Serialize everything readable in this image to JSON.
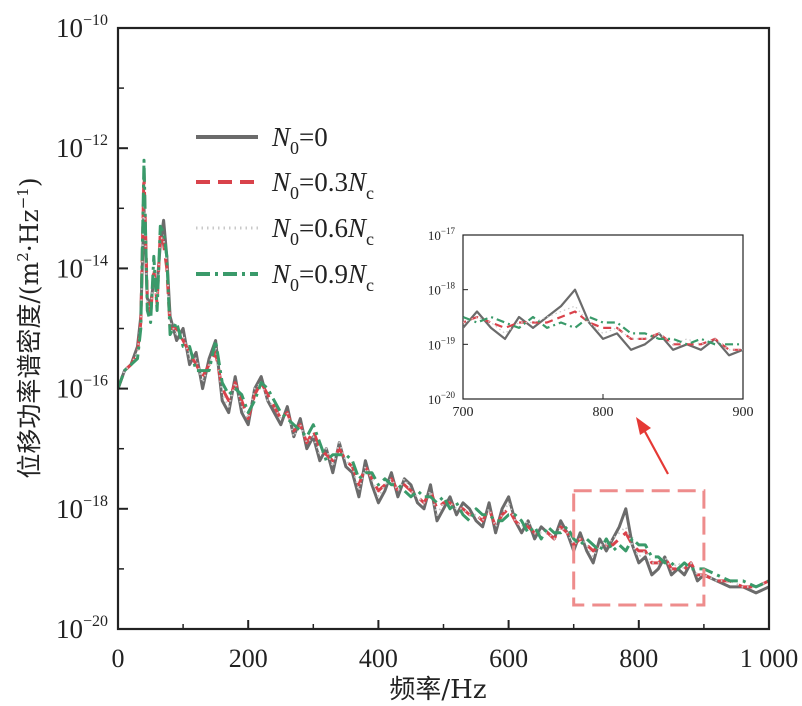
{
  "chart_data": {
    "type": "line",
    "title": "",
    "xlabel": "频率/Hz",
    "ylabel": "位移功率谱密度/(m²·Hz⁻¹)",
    "ylabel_parts": [
      "位移功率谱密度/(m",
      "2",
      "·Hz",
      "−1",
      ")"
    ],
    "xlim": [
      0,
      1000
    ],
    "ylim_log10": [
      -20,
      -10
    ],
    "y_scale": "log",
    "x_ticks": [
      0,
      200,
      400,
      600,
      800,
      1000
    ],
    "x_tick_labels": [
      "0",
      "200",
      "400",
      "600",
      "800",
      "1 000"
    ],
    "y_ticks_exp": [
      -20,
      -18,
      -16,
      -14,
      -12,
      -10
    ],
    "y_tick_base": "10",
    "y_tick_exponents": [
      "−20",
      "−18",
      "−16",
      "−14",
      "−12",
      "−10"
    ],
    "legend_position": "upper-left",
    "series": [
      {
        "name": "N0=0",
        "legend": {
          "sym": "N",
          "sub": "0",
          "eq": "=0",
          "coef": "",
          "sym2": "",
          "sub2": ""
        },
        "color": "#6b6b6b",
        "dash": "solid",
        "x": [
          0,
          10,
          20,
          30,
          35,
          40,
          45,
          50,
          55,
          60,
          65,
          70,
          75,
          80,
          90,
          100,
          110,
          120,
          130,
          140,
          150,
          160,
          170,
          180,
          190,
          200,
          210,
          220,
          230,
          240,
          250,
          260,
          270,
          280,
          290,
          300,
          310,
          320,
          330,
          340,
          350,
          360,
          370,
          380,
          390,
          400,
          410,
          420,
          430,
          440,
          450,
          460,
          470,
          480,
          490,
          500,
          510,
          520,
          530,
          540,
          550,
          560,
          570,
          580,
          590,
          600,
          610,
          620,
          630,
          640,
          650,
          660,
          670,
          680,
          690,
          700,
          710,
          720,
          730,
          740,
          750,
          760,
          770,
          780,
          790,
          800,
          810,
          820,
          830,
          840,
          850,
          860,
          870,
          880,
          890,
          900,
          920,
          940,
          960,
          980,
          1000
        ],
        "log_y": [
          -16.0,
          -15.7,
          -15.6,
          -15.3,
          -14.8,
          -13.0,
          -14.5,
          -14.6,
          -14.2,
          -14.3,
          -13.6,
          -13.2,
          -13.8,
          -14.8,
          -15.2,
          -15.0,
          -15.6,
          -15.4,
          -16.0,
          -15.5,
          -15.2,
          -16.2,
          -16.4,
          -15.8,
          -16.4,
          -16.6,
          -16.0,
          -15.8,
          -16.2,
          -16.4,
          -16.6,
          -16.3,
          -16.8,
          -16.5,
          -17.0,
          -16.8,
          -17.2,
          -17.0,
          -17.4,
          -16.9,
          -17.3,
          -17.4,
          -17.8,
          -17.2,
          -17.6,
          -17.9,
          -17.7,
          -17.4,
          -17.8,
          -17.5,
          -17.6,
          -17.9,
          -18.0,
          -17.6,
          -18.2,
          -18.0,
          -17.8,
          -18.1,
          -17.9,
          -18.0,
          -18.2,
          -18.3,
          -17.9,
          -18.4,
          -18.0,
          -17.8,
          -18.2,
          -18.4,
          -18.2,
          -18.5,
          -18.3,
          -18.4,
          -18.5,
          -18.2,
          -18.4,
          -18.7,
          -18.4,
          -18.7,
          -18.9,
          -18.5,
          -18.7,
          -18.5,
          -18.3,
          -18.0,
          -18.6,
          -18.9,
          -18.8,
          -19.1,
          -19.0,
          -18.8,
          -19.1,
          -19.0,
          -19.1,
          -18.9,
          -19.2,
          -19.1,
          -19.2,
          -19.3,
          -19.3,
          -19.4,
          -19.3
        ]
      },
      {
        "name": "N0=0.3Nc",
        "legend": {
          "sym": "N",
          "sub": "0",
          "eq": "=0.3",
          "coef": "",
          "sym2": "N",
          "sub2": "c"
        },
        "color": "#d9424b",
        "dash": "dashed",
        "x": [
          0,
          10,
          20,
          30,
          35,
          40,
          45,
          50,
          55,
          60,
          65,
          70,
          75,
          80,
          90,
          100,
          110,
          120,
          130,
          140,
          150,
          160,
          170,
          180,
          190,
          200,
          210,
          220,
          230,
          240,
          250,
          260,
          270,
          280,
          290,
          300,
          310,
          320,
          330,
          340,
          350,
          360,
          370,
          380,
          390,
          400,
          410,
          420,
          430,
          440,
          450,
          460,
          470,
          480,
          490,
          500,
          510,
          520,
          530,
          540,
          550,
          560,
          570,
          580,
          590,
          600,
          610,
          620,
          630,
          640,
          650,
          660,
          670,
          680,
          690,
          700,
          710,
          720,
          730,
          740,
          750,
          760,
          770,
          780,
          790,
          800,
          810,
          820,
          830,
          840,
          850,
          860,
          870,
          880,
          890,
          900,
          920,
          940,
          960,
          980,
          1000
        ],
        "log_y": [
          -16.0,
          -15.7,
          -15.6,
          -15.4,
          -14.9,
          -12.4,
          -14.5,
          -14.8,
          -14.0,
          -14.6,
          -13.4,
          -13.6,
          -14.0,
          -15.0,
          -15.0,
          -15.2,
          -15.4,
          -15.6,
          -15.8,
          -15.6,
          -15.4,
          -16.0,
          -16.2,
          -15.9,
          -16.2,
          -16.5,
          -16.1,
          -15.9,
          -16.1,
          -16.3,
          -16.5,
          -16.4,
          -16.7,
          -16.6,
          -16.9,
          -16.7,
          -17.0,
          -17.1,
          -17.2,
          -17.0,
          -17.2,
          -17.3,
          -17.6,
          -17.3,
          -17.5,
          -17.7,
          -17.6,
          -17.5,
          -17.7,
          -17.6,
          -17.7,
          -17.8,
          -17.9,
          -17.7,
          -18.0,
          -17.9,
          -17.9,
          -18.0,
          -18.0,
          -18.1,
          -18.1,
          -18.2,
          -18.0,
          -18.3,
          -18.1,
          -18.0,
          -18.2,
          -18.3,
          -18.3,
          -18.4,
          -18.4,
          -18.4,
          -18.5,
          -18.3,
          -18.4,
          -18.6,
          -18.5,
          -18.6,
          -18.7,
          -18.6,
          -18.6,
          -18.6,
          -18.5,
          -18.4,
          -18.6,
          -18.7,
          -18.7,
          -18.9,
          -18.9,
          -18.8,
          -19.0,
          -19.0,
          -19.0,
          -18.9,
          -19.1,
          -19.1,
          -19.2,
          -19.2,
          -19.3,
          -19.3,
          -19.2
        ]
      },
      {
        "name": "N0=0.6Nc",
        "legend": {
          "sym": "N",
          "sub": "0",
          "eq": "=0.6",
          "coef": "",
          "sym2": "N",
          "sub2": "c"
        },
        "color": "#c9c9c9",
        "dash": "dotted",
        "x": [
          0,
          10,
          20,
          30,
          35,
          40,
          45,
          50,
          55,
          60,
          65,
          70,
          75,
          80,
          90,
          100,
          110,
          120,
          130,
          140,
          150,
          160,
          170,
          180,
          190,
          200,
          210,
          220,
          230,
          240,
          250,
          260,
          270,
          280,
          290,
          300,
          310,
          320,
          330,
          340,
          350,
          360,
          370,
          380,
          390,
          400,
          410,
          420,
          430,
          440,
          450,
          460,
          470,
          480,
          490,
          500,
          510,
          520,
          530,
          540,
          550,
          560,
          570,
          580,
          590,
          600,
          610,
          620,
          630,
          640,
          650,
          660,
          670,
          680,
          690,
          700,
          710,
          720,
          730,
          740,
          750,
          760,
          770,
          780,
          790,
          800,
          810,
          820,
          830,
          840,
          850,
          860,
          870,
          880,
          890,
          900,
          920,
          940,
          960,
          980,
          1000
        ],
        "log_y": [
          -16.0,
          -15.7,
          -15.6,
          -15.4,
          -14.9,
          -12.8,
          -14.6,
          -14.7,
          -14.1,
          -14.5,
          -13.5,
          -13.5,
          -13.9,
          -14.9,
          -15.1,
          -15.1,
          -15.5,
          -15.5,
          -15.9,
          -15.6,
          -15.3,
          -16.1,
          -16.3,
          -15.9,
          -16.3,
          -16.5,
          -16.0,
          -15.9,
          -16.2,
          -16.3,
          -16.5,
          -16.4,
          -16.8,
          -16.6,
          -16.9,
          -16.8,
          -17.1,
          -17.0,
          -17.3,
          -16.9,
          -17.2,
          -17.3,
          -17.7,
          -17.3,
          -17.5,
          -17.8,
          -17.6,
          -17.5,
          -17.7,
          -17.5,
          -17.7,
          -17.8,
          -17.9,
          -17.7,
          -18.1,
          -17.9,
          -17.9,
          -18.0,
          -18.0,
          -18.1,
          -18.1,
          -18.2,
          -18.0,
          -18.3,
          -18.1,
          -17.9,
          -18.2,
          -18.3,
          -18.2,
          -18.4,
          -18.4,
          -18.4,
          -18.5,
          -18.3,
          -18.4,
          -18.6,
          -18.5,
          -18.6,
          -18.8,
          -18.6,
          -18.6,
          -18.5,
          -18.4,
          -18.3,
          -18.6,
          -18.8,
          -18.7,
          -18.9,
          -18.9,
          -18.8,
          -19.0,
          -18.9,
          -19.0,
          -18.9,
          -19.1,
          -19.1,
          -19.2,
          -19.2,
          -19.3,
          -19.3,
          -19.2
        ]
      },
      {
        "name": "N0=0.9Nc",
        "legend": {
          "sym": "N",
          "sub": "0",
          "eq": "=0.9",
          "coef": "",
          "sym2": "N",
          "sub2": "c"
        },
        "color": "#3a9a6a",
        "dash": "dashdot",
        "x": [
          0,
          10,
          20,
          30,
          35,
          40,
          45,
          50,
          55,
          60,
          65,
          70,
          75,
          80,
          90,
          100,
          110,
          120,
          130,
          140,
          150,
          160,
          170,
          180,
          190,
          200,
          210,
          220,
          230,
          240,
          250,
          260,
          270,
          280,
          290,
          300,
          310,
          320,
          330,
          340,
          350,
          360,
          370,
          380,
          390,
          400,
          410,
          420,
          430,
          440,
          450,
          460,
          470,
          480,
          490,
          500,
          510,
          520,
          530,
          540,
          550,
          560,
          570,
          580,
          590,
          600,
          610,
          620,
          630,
          640,
          650,
          660,
          670,
          680,
          690,
          700,
          710,
          720,
          730,
          740,
          750,
          760,
          770,
          780,
          790,
          800,
          810,
          820,
          830,
          840,
          850,
          860,
          870,
          880,
          890,
          900,
          920,
          940,
          960,
          980,
          1000
        ],
        "log_y": [
          -16.0,
          -15.7,
          -15.6,
          -15.5,
          -15.0,
          -12.2,
          -14.7,
          -14.9,
          -13.8,
          -14.7,
          -13.3,
          -13.4,
          -13.8,
          -15.1,
          -14.9,
          -15.3,
          -15.3,
          -15.7,
          -15.7,
          -15.7,
          -15.2,
          -15.9,
          -16.1,
          -16.0,
          -16.1,
          -16.4,
          -16.2,
          -15.9,
          -16.0,
          -16.2,
          -16.4,
          -16.5,
          -16.6,
          -16.7,
          -16.8,
          -16.6,
          -16.9,
          -17.2,
          -17.1,
          -17.1,
          -17.1,
          -17.2,
          -17.5,
          -17.4,
          -17.4,
          -17.6,
          -17.5,
          -17.6,
          -17.6,
          -17.7,
          -17.8,
          -17.7,
          -17.8,
          -17.8,
          -17.9,
          -17.8,
          -18.0,
          -17.9,
          -18.1,
          -18.2,
          -18.0,
          -18.1,
          -18.1,
          -18.2,
          -18.2,
          -18.1,
          -18.1,
          -18.2,
          -18.4,
          -18.3,
          -18.5,
          -18.3,
          -18.4,
          -18.4,
          -18.3,
          -18.5,
          -18.6,
          -18.5,
          -18.6,
          -18.7,
          -18.5,
          -18.7,
          -18.6,
          -18.7,
          -18.5,
          -18.6,
          -18.6,
          -18.8,
          -18.8,
          -18.9,
          -18.9,
          -19.0,
          -18.9,
          -19.0,
          -19.0,
          -19.0,
          -19.1,
          -19.2,
          -19.2,
          -19.3,
          -19.2
        ]
      }
    ],
    "inset": {
      "xlim": [
        700,
        900
      ],
      "ylim_log10": [
        -20,
        -17
      ],
      "x_tick_labels": [
        "700",
        "800",
        "900"
      ],
      "y_tick_base": "10",
      "y_tick_exponents": [
        "−20",
        "−19",
        "−18",
        "−17"
      ],
      "location": "middle-right",
      "highlight_region": {
        "x": [
          700,
          900
        ],
        "log_y": [
          -19.6,
          -17.7
        ]
      }
    }
  }
}
